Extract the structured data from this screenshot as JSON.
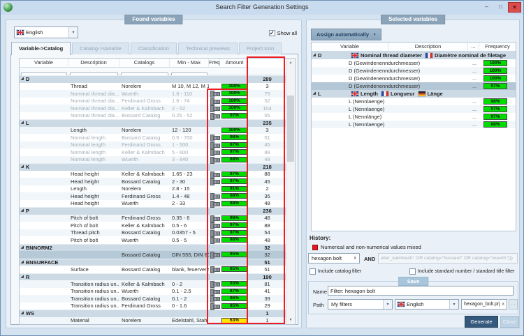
{
  "window": {
    "title": "Search Filter Generation Settings"
  },
  "icons": {
    "minimize": "–",
    "maximize": "□",
    "close": "✕",
    "dropdown": "▾",
    "expand": "◢",
    "clear": "x",
    "browse": "...",
    "check": "✓",
    "sort": "▴",
    "scroll_up": "▲",
    "scroll_down": "▼"
  },
  "colors": {
    "annotation_red": "#ec1c24",
    "freq_green": "#00dc00",
    "freq_yellow": "#ffe600",
    "accent_dark": "#35587d",
    "group_row": "#ccdae6",
    "selected_row": "#b6c9d7"
  },
  "found_panel": {
    "label": "Found variables",
    "language_combo": {
      "flag": "gb",
      "value": "English"
    },
    "show_all": {
      "label": "Show all",
      "checked": true
    },
    "tabs": [
      {
        "label": "Variable->Catalog",
        "active": true
      },
      {
        "label": "Catalog->Variable",
        "active": false
      },
      {
        "label": "Classification",
        "active": false
      },
      {
        "label": "Technical previews",
        "active": false
      },
      {
        "label": "Project icon",
        "active": false
      }
    ],
    "columns": [
      "Variable",
      "Description",
      "Catalogs",
      "Min - Max",
      "Frequency",
      "Amount"
    ],
    "groups": [
      {
        "name": "D",
        "amount": "289",
        "rows": [
          {
            "desc": "Thread",
            "catalog": "Norelem",
            "range": "M 10, M 12, M 16, M...",
            "bolt": false,
            "freq": "100%",
            "color": "green",
            "amount": "3",
            "dim": false
          },
          {
            "desc": "Nominal thread dia...",
            "catalog": "Wuerth",
            "range": "1.6 - 110",
            "bolt": true,
            "freq": "100%",
            "color": "green",
            "amount": "75",
            "dim": true
          },
          {
            "desc": "Nominal thread dia...",
            "catalog": "Ferdinand Gross",
            "range": "1.6 - 74",
            "bolt": true,
            "freq": "100%",
            "color": "green",
            "amount": "52",
            "dim": true
          },
          {
            "desc": "Nominal thread dia...",
            "catalog": "Keller & Kalmbach",
            "range": "2 - 52",
            "bolt": true,
            "freq": "100%",
            "color": "green",
            "amount": "104",
            "dim": true
          },
          {
            "desc": "Nominal thread dia...",
            "catalog": "Bossard Catalog",
            "range": "0.25 - 52",
            "bolt": true,
            "freq": "97%",
            "color": "green",
            "amount": "55",
            "dim": true
          }
        ]
      },
      {
        "name": "L",
        "amount": "235",
        "rows": [
          {
            "desc": "Length",
            "catalog": "Norelem",
            "range": "12 - 120",
            "bolt": false,
            "freq": "100%",
            "color": "green",
            "amount": "3",
            "dim": false
          },
          {
            "desc": "Nominal length",
            "catalog": "Bossard Catalog",
            "range": "0.5 - 700",
            "bolt": true,
            "freq": "98%",
            "color": "green",
            "amount": "51",
            "dim": true
          },
          {
            "desc": "Nominal length",
            "catalog": "Ferdinand Gross",
            "range": "1 - 500",
            "bolt": true,
            "freq": "97%",
            "color": "green",
            "amount": "45",
            "dim": true
          },
          {
            "desc": "Nominal length",
            "catalog": "Keller & Kalmbach",
            "range": "5 - 600",
            "bolt": true,
            "freq": "97%",
            "color": "green",
            "amount": "88",
            "dim": true
          },
          {
            "desc": "Nominal length",
            "catalog": "Wuerth",
            "range": "3 - 840",
            "bolt": true,
            "freq": "88%",
            "color": "green",
            "amount": "48",
            "dim": true
          }
        ]
      },
      {
        "name": "K",
        "amount": "218",
        "rows": [
          {
            "desc": "Head height",
            "catalog": "Keller & Kalmbach",
            "range": "1.65 - 23",
            "bolt": true,
            "freq": "97%",
            "color": "green",
            "amount": "88",
            "dim": false
          },
          {
            "desc": "Head height",
            "catalog": "Bossard Catalog",
            "range": "2 - 30",
            "bolt": true,
            "freq": "97%",
            "color": "green",
            "amount": "45",
            "dim": false
          },
          {
            "desc": "Length",
            "catalog": "Norelem",
            "range": "2.8 - 15",
            "bolt": false,
            "freq": "91%",
            "color": "green",
            "amount": "2",
            "dim": false
          },
          {
            "desc": "Head height",
            "catalog": "Ferdinand Gross",
            "range": "1.4 - 48",
            "bolt": true,
            "freq": "88%",
            "color": "green",
            "amount": "35",
            "dim": false
          },
          {
            "desc": "Head height",
            "catalog": "Wuerth",
            "range": "2 - 33",
            "bolt": true,
            "freq": "88%",
            "color": "green",
            "amount": "48",
            "dim": false
          }
        ]
      },
      {
        "name": "P",
        "amount": "236",
        "rows": [
          {
            "desc": "Pitch of bolt",
            "catalog": "Ferdinand Gross",
            "range": "0.35 - 6",
            "bolt": true,
            "freq": "98%",
            "color": "green",
            "amount": "46",
            "dim": false
          },
          {
            "desc": "Pitch of bolt",
            "catalog": "Keller & Kalmbach",
            "range": "0.5 - 6",
            "bolt": true,
            "freq": "97%",
            "color": "green",
            "amount": "88",
            "dim": false
          },
          {
            "desc": "Thread pitch",
            "catalog": "Bossard Catalog",
            "range": "0.0357 - 5",
            "bolt": true,
            "freq": "97%",
            "color": "green",
            "amount": "54",
            "dim": false
          },
          {
            "desc": "Pitch of bolt",
            "catalog": "Wuerth",
            "range": "0.5 - 5",
            "bolt": true,
            "freq": "88%",
            "color": "green",
            "amount": "48",
            "dim": false
          }
        ]
      },
      {
        "name": "BNNORM2",
        "amount": "32",
        "rows": [
          {
            "desc": "",
            "catalog": "Bossard Catalog",
            "range": "DIN 555, DIN 601, D...",
            "bolt": true,
            "freq": "85%",
            "color": "green",
            "amount": "32",
            "dim": false,
            "selected": true
          }
        ]
      },
      {
        "name": "BNSURFACE",
        "amount": "51",
        "rows": [
          {
            "desc": "Surface",
            "catalog": "Bossard Catalog",
            "range": "blank, feuerverzink...",
            "bolt": true,
            "freq": "85%",
            "color": "green",
            "amount": "51",
            "dim": false
          }
        ]
      },
      {
        "name": "R",
        "amount": "190",
        "rows": [
          {
            "desc": "Transition radius un...",
            "catalog": "Keller & Kalmbach",
            "range": "0 - 2",
            "bolt": true,
            "freq": "93%",
            "color": "green",
            "amount": "81",
            "dim": false
          },
          {
            "desc": "Transition radius un...",
            "catalog": "Wuerth",
            "range": "0.1 - 2.5",
            "bolt": true,
            "freq": "87%",
            "color": "green",
            "amount": "41",
            "dim": false
          },
          {
            "desc": "Transition radius un...",
            "catalog": "Bossard Catalog",
            "range": "0.1 - 2",
            "bolt": true,
            "freq": "86%",
            "color": "green",
            "amount": "39",
            "dim": false
          },
          {
            "desc": "Transition radius un...",
            "catalog": "Ferdinand Gross",
            "range": "0 - 1.6",
            "bolt": true,
            "freq": "85%",
            "color": "green",
            "amount": "29",
            "dim": false
          }
        ]
      },
      {
        "name": "WS",
        "amount": "1",
        "rows": [
          {
            "desc": "Material",
            "catalog": "Norelem",
            "range": "Edelstahl, Stahl",
            "bolt": false,
            "freq": "63%",
            "color": "yellow",
            "amount": "1",
            "dim": false
          }
        ]
      }
    ]
  },
  "selected_panel": {
    "label": "Selected variables",
    "assign_button": "Assign automatically",
    "columns": [
      "Variable",
      "Description",
      "...",
      "Frequency"
    ],
    "groups": [
      {
        "name": "D",
        "desc": [
          {
            "flag": "gb",
            "text": "Nominal thread diameter"
          },
          {
            "flag": "fr",
            "text": "Diamètre nominal de filetage"
          }
        ],
        "rows": [
          {
            "label": "D (Gewindenenndurchmesser)",
            "dots": "...",
            "freq": "100%"
          },
          {
            "label": "D (Gewindenenndurchmesser)",
            "dots": "...",
            "freq": "100%"
          },
          {
            "label": "D (Gewindenenndurchmesser)",
            "dots": "...",
            "freq": "100%"
          },
          {
            "label": "D (Gewindenenndurchmesser)",
            "dots": "...",
            "freq": "97%",
            "selected": true
          }
        ]
      },
      {
        "name": "L",
        "desc": [
          {
            "flag": "gb",
            "text": "Length"
          },
          {
            "flag": "fr",
            "text": "Longueur"
          },
          {
            "flag": "de",
            "text": "Länge"
          }
        ],
        "rows": [
          {
            "label": "L (Nennlaenge)",
            "dots": "...",
            "freq": "98%"
          },
          {
            "label": "L (Nennlaenge)",
            "dots": "...",
            "freq": "97%"
          },
          {
            "label": "L (Nennlänge)",
            "dots": "...",
            "freq": "97%"
          },
          {
            "label": "L (Nennlaenge)",
            "dots": "...",
            "freq": "88%"
          }
        ]
      }
    ],
    "history": {
      "label": "History:",
      "legend": "Numerical and non-numerical values mixed"
    },
    "filter": {
      "keyword": "hexagon bolt",
      "operator": "AND",
      "expression": "eller_kalmbach\" OR catalog=\"bossard\" OR catalog=\"wuerth\")))"
    },
    "checkboxes": [
      {
        "label": "Include catalog filter",
        "checked": false
      },
      {
        "label": "Include standard number / standard title filter",
        "checked": false
      }
    ],
    "save": {
      "legend": "Save",
      "name_label": "Name",
      "name_value": "Filter: hexagon bolt",
      "path_label": "Path",
      "path_folder": "My filters",
      "path_language": "English",
      "path_file": "hexagon_bolt.prj"
    },
    "buttons": {
      "generate": "Generate",
      "close": "Close"
    }
  }
}
